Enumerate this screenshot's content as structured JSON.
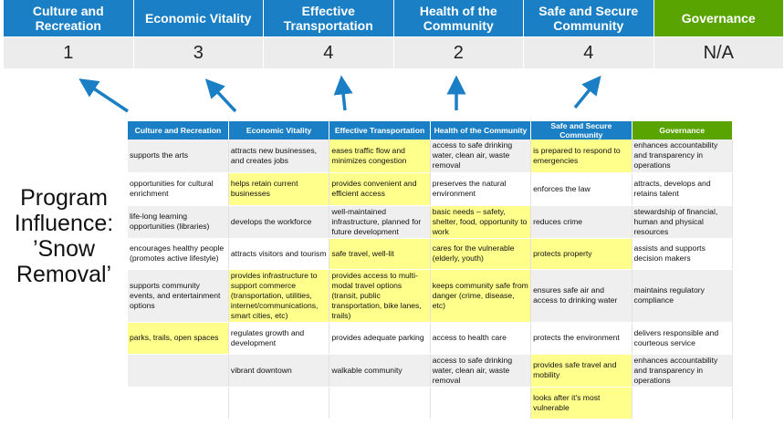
{
  "top": {
    "columns": [
      {
        "label": "Culture and Recreation",
        "score": "1"
      },
      {
        "label": "Economic Vitality",
        "score": "3"
      },
      {
        "label": "Effective Transportation",
        "score": "4"
      },
      {
        "label": "Health of the Community",
        "score": "2"
      },
      {
        "label": "Safe and Secure Community",
        "score": "4"
      },
      {
        "label": "Governance",
        "score": "N/A"
      }
    ]
  },
  "program_label": {
    "line1": "Program",
    "line2": "Influence:",
    "line3": "’Snow",
    "line4": "Removal’"
  },
  "colors": {
    "header_blue": "#1a7fc4",
    "governance_green": "#5aa400",
    "highlight": "#ffff8c",
    "arrow": "#1a7fc4"
  },
  "table": {
    "headers": [
      "Culture and Recreation",
      "Economic Vitality",
      "Effective Transportation",
      "Health of the Community",
      "Safe and Secure Community",
      "Governance"
    ],
    "rows": [
      [
        {
          "t": "supports the arts"
        },
        {
          "t": "attracts new businesses, and creates jobs"
        },
        {
          "t": "eases traffic flow and minimizes congestion",
          "h": true
        },
        {
          "t": "access to safe drinking water, clean air, waste removal"
        },
        {
          "t": "is prepared to respond to emergencies",
          "h": true
        },
        {
          "t": "enhances accountability and transparency in operations"
        }
      ],
      [
        {
          "t": "opportunities for cultural enrichment"
        },
        {
          "t": "helps retain current businesses",
          "h": true
        },
        {
          "t": "provides convenient and efficient access",
          "h": true
        },
        {
          "t": "preserves the natural environment"
        },
        {
          "t": "enforces the law"
        },
        {
          "t": "attracts, develops and retains talent"
        }
      ],
      [
        {
          "t": "life-long learning opportunities (libraries)"
        },
        {
          "t": "develops the workforce"
        },
        {
          "t": "well-maintained infrastructure, planned for future development"
        },
        {
          "t": "basic needs – safety, shelter, food, opportunity to work",
          "h": true
        },
        {
          "t": "reduces crime"
        },
        {
          "t": "stewardship of financial, human and physical resources"
        }
      ],
      [
        {
          "t": "encourages healthy people (promotes active lifestyle)"
        },
        {
          "t": "attracts visitors and tourism"
        },
        {
          "t": "safe travel, well-lit",
          "h": true
        },
        {
          "t": "cares for the vulnerable (elderly, youth)",
          "h": true
        },
        {
          "t": "protects property",
          "h": true
        },
        {
          "t": "assists and supports decision makers"
        }
      ],
      [
        {
          "t": "supports community events, and entertainment options"
        },
        {
          "t": "provides infrastructure to support commerce (transportation, utilities, internet/communications, smart cities, etc)",
          "h": true
        },
        {
          "t": "provides access to multi-modal travel options (transit, public transportation, bike lanes, trails)",
          "h": true
        },
        {
          "t": "keeps community safe from danger (crime, disease, etc)",
          "h": true
        },
        {
          "t": "ensures safe air and access to drinking water"
        },
        {
          "t": "maintains regulatory compliance"
        }
      ],
      [
        {
          "t": "parks, trails, open spaces",
          "h": true
        },
        {
          "t": "regulates growth and development"
        },
        {
          "t": "provides adequate parking"
        },
        {
          "t": "access to health care"
        },
        {
          "t": "protects the environment"
        },
        {
          "t": "delivers responsible and courteous service"
        }
      ],
      [
        {
          "t": ""
        },
        {
          "t": "vibrant downtown"
        },
        {
          "t": "walkable community"
        },
        {
          "t": "access to safe drinking water, clean air, waste removal"
        },
        {
          "t": "provides safe travel and mobility",
          "h": true
        },
        {
          "t": "enhances accountability and transparency in operations"
        }
      ],
      [
        {
          "t": ""
        },
        {
          "t": ""
        },
        {
          "t": ""
        },
        {
          "t": ""
        },
        {
          "t": "looks after it's most vulnerable",
          "h": true
        },
        {
          "t": ""
        }
      ]
    ]
  }
}
